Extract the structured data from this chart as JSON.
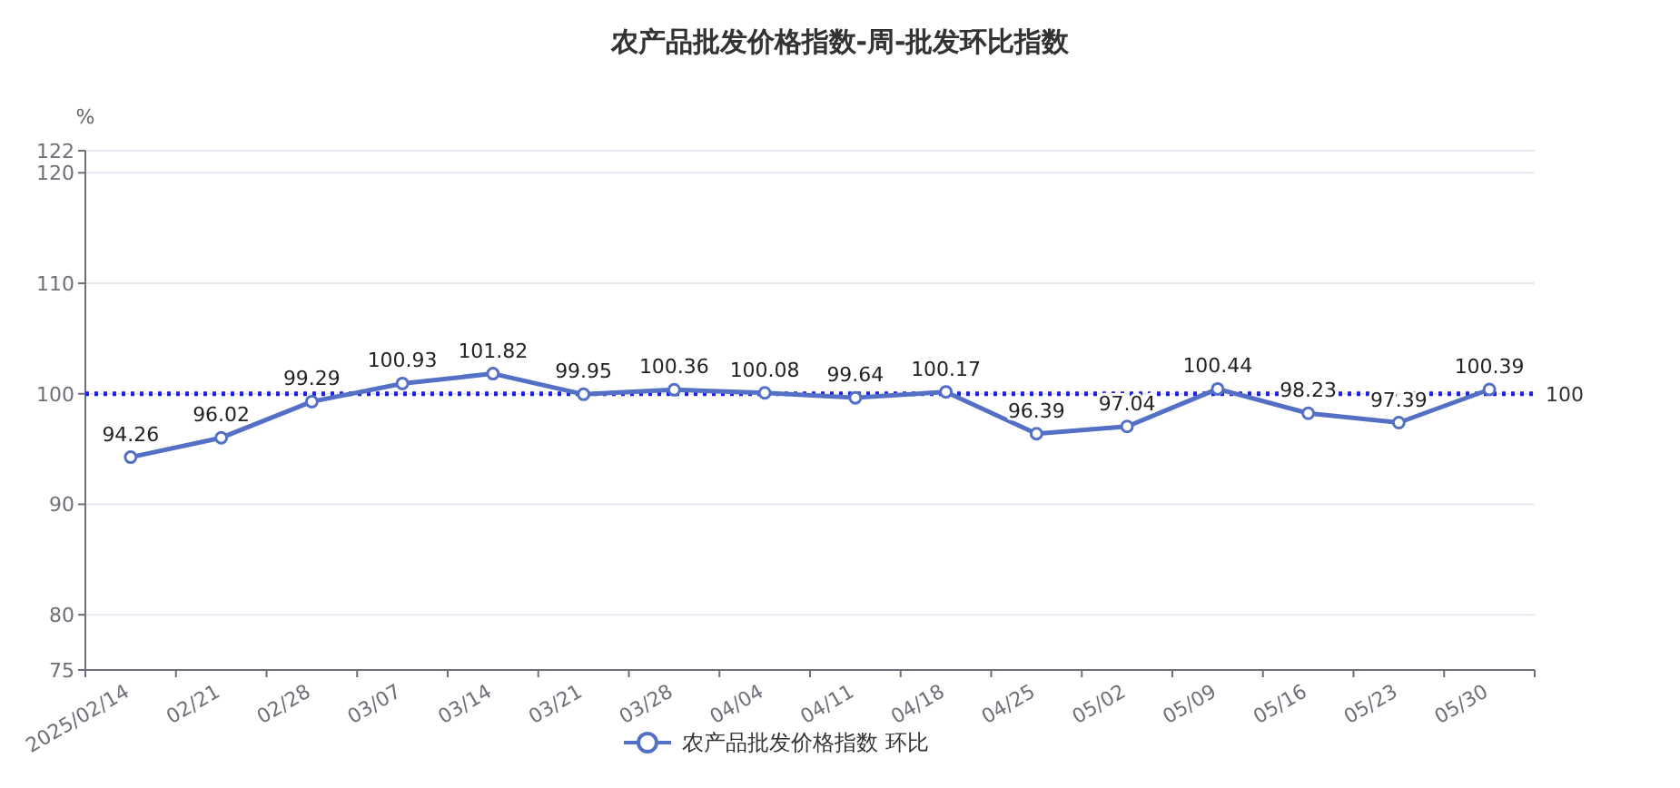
{
  "chart_data": {
    "type": "line",
    "title": "农产品批发价格指数-周-批发环比指数",
    "ylabel": "%",
    "categories": [
      "2025/02/14",
      "02/21",
      "02/28",
      "03/07",
      "03/14",
      "03/21",
      "03/28",
      "04/04",
      "04/11",
      "04/18",
      "04/25",
      "05/02",
      "05/09",
      "05/16",
      "05/23",
      "05/30"
    ],
    "series": [
      {
        "name": "农产品批发价格指数 环比",
        "color": "#5470c6",
        "values": [
          94.26,
          96.02,
          99.29,
          100.93,
          101.82,
          99.95,
          100.36,
          100.08,
          99.64,
          100.17,
          96.39,
          97.04,
          100.44,
          98.23,
          97.39,
          100.39
        ]
      }
    ],
    "ylim": [
      75,
      122
    ],
    "yticks": [
      75,
      80,
      90,
      100,
      110,
      120,
      122
    ],
    "ref_lines": [
      {
        "axis": "y",
        "value": 100,
        "label": "100",
        "color": "#1f1fe6",
        "line_style": "dotted"
      }
    ],
    "data_labels": true,
    "grid": "y",
    "legend": "bottom",
    "marker": "circle",
    "line_style": "solid"
  }
}
